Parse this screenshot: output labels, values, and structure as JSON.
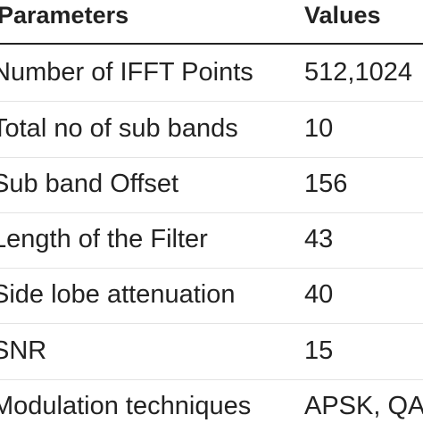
{
  "table": {
    "headers": {
      "parameter": "Parameters",
      "value": "Values"
    },
    "rows": [
      {
        "parameter": "Number of IFFT Points",
        "value": "512,1024"
      },
      {
        "parameter": "Total no of sub bands",
        "value": "10"
      },
      {
        "parameter": "Sub band Offset",
        "value": "156"
      },
      {
        "parameter": "Length of the Filter",
        "value": "43"
      },
      {
        "parameter": "Side lobe attenuation",
        "value": "40"
      },
      {
        "parameter": "SNR",
        "value": "15"
      },
      {
        "parameter": "Modulation techniques",
        "value": "APSK, QAM"
      }
    ]
  }
}
